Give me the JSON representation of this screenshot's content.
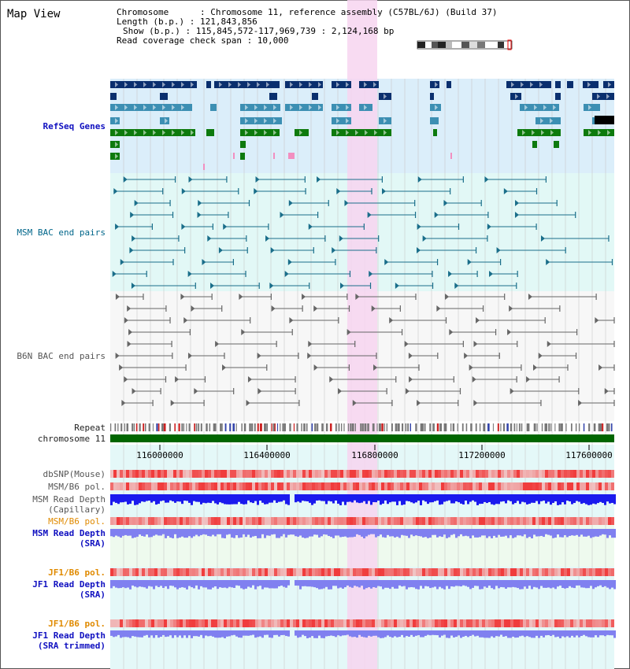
{
  "window_title": "Map View",
  "info": {
    "chromosome": "Chromosome      : Chromosome 11, reference assembly (C57BL/6J) (Build 37)",
    "length": "Length (b.p.) : 121,843,856",
    "show": "Show (b.p.) : 115,845,572-117,969,739 : 2,124,168 bp",
    "coverage": "Read coverage check span : 10,000"
  },
  "tracks": {
    "refseq": "RefSeq Genes",
    "msm_bac": "MSM BAC end pairs",
    "b6n_bac": "B6N BAC end pairs",
    "repeat": "Repeat",
    "chromosome": "chromosome 11",
    "dbsnp": "dbSNP(Mouse)",
    "msm_b6_pol_1": "MSM/B6 pol.",
    "msm_read_depth_cap_1": "MSM Read Depth",
    "msm_read_depth_cap_2": "(Capillary)",
    "msm_b6_pol_2": "MSM/B6 pol.",
    "msm_read_depth_sra_1": "MSM Read Depth",
    "msm_read_depth_sra_2": "(SRA)",
    "jf1_b6_pol_1": "JF1/B6 pol.",
    "jf1_read_depth_sra_1": "JF1 Read Depth",
    "jf1_read_depth_sra_2": "(SRA)",
    "jf1_b6_pol_2": "JF1/B6 pol.",
    "jf1_read_depth_trim_1": "JF1 Read Depth",
    "jf1_read_depth_trim_2": "(SRA trimmed)"
  },
  "axis_ticks": [
    "116000000",
    "116400000",
    "116800000",
    "117200000",
    "117600000"
  ],
  "colors": {
    "refseq_bg": "#dbeefa",
    "msm_bg": "#e2f8f6",
    "b6n_bg": "#f7f7f7",
    "highlight": "#f7d5f0",
    "chromosome_bar": "#006600",
    "gene_dark": "#0a2f6e",
    "gene_mid": "#3c8fb3",
    "gene_green": "#0d7a0d",
    "msm_pair": "#1a6e8a",
    "b6n_pair": "#666666",
    "pol": "#ee4444",
    "depth_blue": "#1a1aee",
    "depth_light": "#8080f0"
  }
}
